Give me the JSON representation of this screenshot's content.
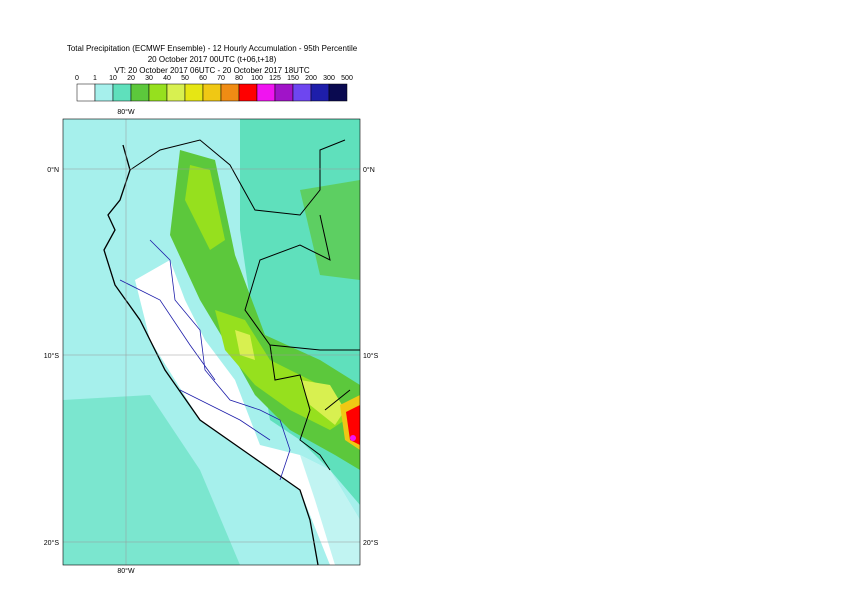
{
  "header": {
    "title_lines": [
      "Total Precipitation (ECMWF Ensemble) - 12 Hourly Accumulation - 95th Percentile",
      "20 October 2017 00UTC (t+06,t+18)",
      "VT: 20 October 2017 06UTC - 20 October 2017 18UTC"
    ]
  },
  "legend": {
    "thresholds": [
      0,
      1,
      10,
      20,
      30,
      40,
      50,
      60,
      70,
      80,
      100,
      125,
      150,
      200,
      300,
      500
    ],
    "colors": [
      "#ffffff",
      "#a6f0ec",
      "#5fe0bc",
      "#5cc83c",
      "#96e01e",
      "#d8f050",
      "#e6e614",
      "#f0c814",
      "#f08c14",
      "#ff0000",
      "#f014f0",
      "#a014c8",
      "#6e46f0",
      "#1e1eaa",
      "#0a0a50"
    ]
  },
  "map": {
    "lon_labels_top": [
      "80°W"
    ],
    "lon_labels_bottom": [
      "80°W"
    ],
    "lat_labels_left": [
      "0°N",
      "10°S",
      "20°S"
    ],
    "lat_labels_right": [
      "0°N",
      "10°S",
      "20°S"
    ]
  }
}
